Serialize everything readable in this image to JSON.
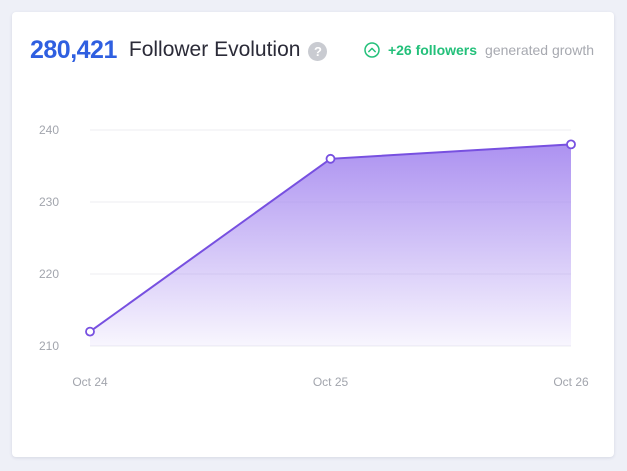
{
  "header": {
    "total_followers": "280,421",
    "title": "Follower Evolution",
    "help_symbol": "?",
    "growth_value": "+26 followers",
    "growth_label": "generated growth"
  },
  "colors": {
    "accent_blue": "#2f5fe0",
    "growth_green": "#23c07a",
    "line_purple": "#7750e0",
    "area_purple": "#a88cf0"
  },
  "icons": {
    "help": "question-circle-icon",
    "growth": "chevron-up-circle-icon"
  },
  "chart_data": {
    "type": "area",
    "categories": [
      "Oct 24",
      "Oct 25",
      "Oct 26"
    ],
    "values": [
      212,
      236,
      238
    ],
    "ylim": [
      210,
      240
    ],
    "yticks": [
      210,
      220,
      230,
      240
    ],
    "ytick_labels": [
      "210",
      "220",
      "230",
      "240"
    ],
    "grid": true,
    "title": "",
    "xlabel": "",
    "ylabel": ""
  }
}
